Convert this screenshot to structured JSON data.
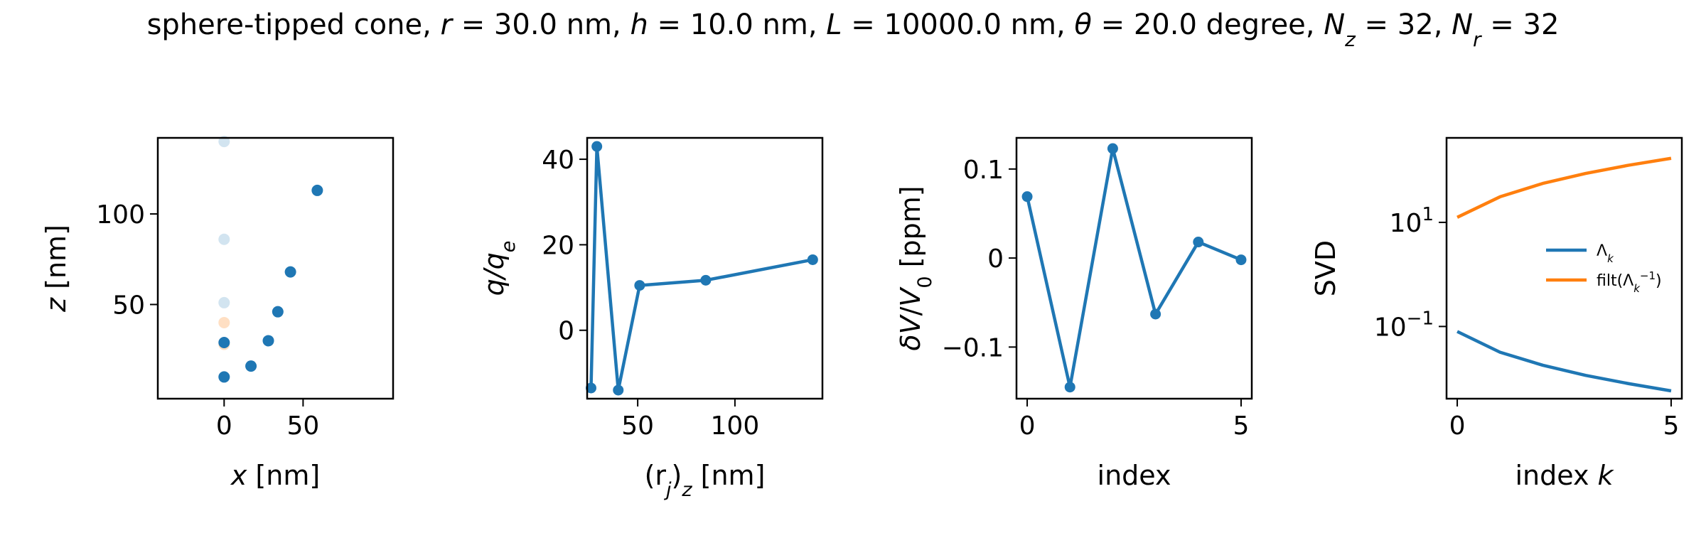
{
  "figure": {
    "title": "sphere-tipped cone, r = 30.0 nm, h = 10.0 nm, L = 10000.0 nm, θ = 20.0 degree, N_z = 32, N_r = 32",
    "title_parts": [
      {
        "t": "sphere-tipped cone, ",
        "i": false
      },
      {
        "t": "r",
        "i": true
      },
      {
        "t": " = 30.0 nm, ",
        "i": false
      },
      {
        "t": "h",
        "i": true
      },
      {
        "t": " = 10.0 nm, ",
        "i": false
      },
      {
        "t": "L",
        "i": true
      },
      {
        "t": " = 10000.0 nm, ",
        "i": false
      },
      {
        "t": "θ",
        "i": true
      },
      {
        "t": " = 20.0 degree, ",
        "i": false
      },
      {
        "t": "N",
        "i": true
      },
      {
        "t": "z",
        "i": true,
        "sub": true
      },
      {
        "t": " = 32, ",
        "i": false
      },
      {
        "t": "N",
        "i": true
      },
      {
        "t": "r",
        "i": true,
        "sub": true
      },
      {
        "t": " = 32",
        "i": false
      }
    ]
  },
  "chart_data": [
    {
      "type": "scatter",
      "xlabel": "x [nm]",
      "xlabel_parts": [
        {
          "t": "x",
          "i": true
        },
        {
          "t": " [nm]",
          "i": false
        }
      ],
      "ylabel": "z [nm]",
      "ylabel_parts": [
        {
          "t": "z",
          "i": true
        },
        {
          "t": " [nm]",
          "i": false
        }
      ],
      "xlim": [
        -42,
        107
      ],
      "ylim": [
        -2,
        142
      ],
      "xticks": [
        0,
        50
      ],
      "yticks": [
        50,
        100
      ],
      "series": [
        {
          "color": "#1f77b4",
          "opacity": 0.2,
          "points": [
            [
              0,
              140
            ],
            [
              0,
              86
            ],
            [
              0,
              51
            ]
          ]
        },
        {
          "color": "#ff7f0e",
          "opacity": 0.25,
          "points": [
            [
              0,
              40
            ],
            [
              0,
              28
            ]
          ]
        },
        {
          "color": "#1f77b4",
          "opacity": 1.0,
          "points": [
            [
              0,
              10
            ],
            [
              17,
              16
            ],
            [
              28,
              30
            ],
            [
              34,
              46
            ],
            [
              42,
              68
            ],
            [
              59,
              113
            ],
            [
              0,
              29
            ]
          ]
        }
      ]
    },
    {
      "type": "line",
      "xlabel": "(r_j)_z [nm]",
      "xlabel_parts": [
        {
          "t": "(",
          "i": false
        },
        {
          "t": "r",
          "i": false
        },
        {
          "t": "j",
          "i": true,
          "sub": true
        },
        {
          "t": ")",
          "i": false
        },
        {
          "t": "z",
          "i": true,
          "sub": true
        },
        {
          "t": " [nm]",
          "i": false
        }
      ],
      "ylabel": "q/q_e",
      "ylabel_parts": [
        {
          "t": "q",
          "i": true
        },
        {
          "t": "/",
          "i": true
        },
        {
          "t": "q",
          "i": true
        },
        {
          "t": "e",
          "i": true,
          "sub": true
        }
      ],
      "xlim": [
        24,
        145
      ],
      "ylim": [
        -16,
        45
      ],
      "xticks": [
        50,
        100
      ],
      "yticks": [
        0,
        20,
        40
      ],
      "series": [
        {
          "color": "#1f77b4",
          "x": [
            26,
            29,
            40,
            51,
            85,
            140
          ],
          "y": [
            -13.5,
            43,
            -14,
            10.5,
            11.7,
            16.5
          ]
        }
      ]
    },
    {
      "type": "line",
      "xlabel": "index",
      "xlabel_parts": [
        {
          "t": "index",
          "i": false
        }
      ],
      "ylabel": "δV/V_0 [ppm]",
      "ylabel_parts": [
        {
          "t": "δV",
          "i": true
        },
        {
          "t": "/",
          "i": false
        },
        {
          "t": "V",
          "i": true
        },
        {
          "t": "0",
          "i": false,
          "sub": true
        },
        {
          "t": " [ppm]",
          "i": false
        }
      ],
      "xlim": [
        -0.25,
        5.25
      ],
      "ylim": [
        -0.158,
        0.135
      ],
      "xticks": [
        0,
        5
      ],
      "yticks": [
        -0.1,
        0.0,
        0.1
      ],
      "series": [
        {
          "color": "#1f77b4",
          "x": [
            0,
            1,
            2,
            3,
            4,
            5
          ],
          "y": [
            0.069,
            -0.145,
            0.123,
            -0.063,
            0.018,
            -0.002
          ]
        }
      ]
    },
    {
      "type": "line",
      "yscale": "log",
      "xlabel": "index k",
      "xlabel_parts": [
        {
          "t": "index ",
          "i": false
        },
        {
          "t": "k",
          "i": true
        }
      ],
      "ylabel": "SVD",
      "ylabel_parts": [
        {
          "t": "SVD",
          "i": false
        }
      ],
      "xlim": [
        -0.25,
        5.25
      ],
      "ylim": [
        0.0041,
        420
      ],
      "xticks": [
        0,
        5
      ],
      "yticks": [
        0.1,
        10
      ],
      "ytick_labels": [
        {
          "base": "10",
          "exp": "−1"
        },
        {
          "base": "10",
          "exp": "1"
        }
      ],
      "legend": "center-right",
      "series": [
        {
          "name": "Λ_k",
          "name_parts": [
            {
              "t": "Λ",
              "i": false
            },
            {
              "t": "k",
              "i": true,
              "sub": true
            }
          ],
          "color": "#1f77b4",
          "x": [
            0,
            1,
            2,
            3,
            4,
            5
          ],
          "y": [
            0.08,
            0.032,
            0.018,
            0.0115,
            0.008,
            0.0058
          ]
        },
        {
          "name": "filt(Λ_k^-1)",
          "name_parts": [
            {
              "t": "filt(Λ",
              "i": false
            },
            {
              "t": "k",
              "i": true,
              "sub": true
            },
            {
              "t": "−1",
              "i": false,
              "sup": true
            },
            {
              "t": ")",
              "i": false
            }
          ],
          "color": "#ff7f0e",
          "x": [
            0,
            1,
            2,
            3,
            4,
            5
          ],
          "y": [
            12.5,
            31,
            56,
            87,
            125,
            170
          ]
        }
      ]
    }
  ]
}
